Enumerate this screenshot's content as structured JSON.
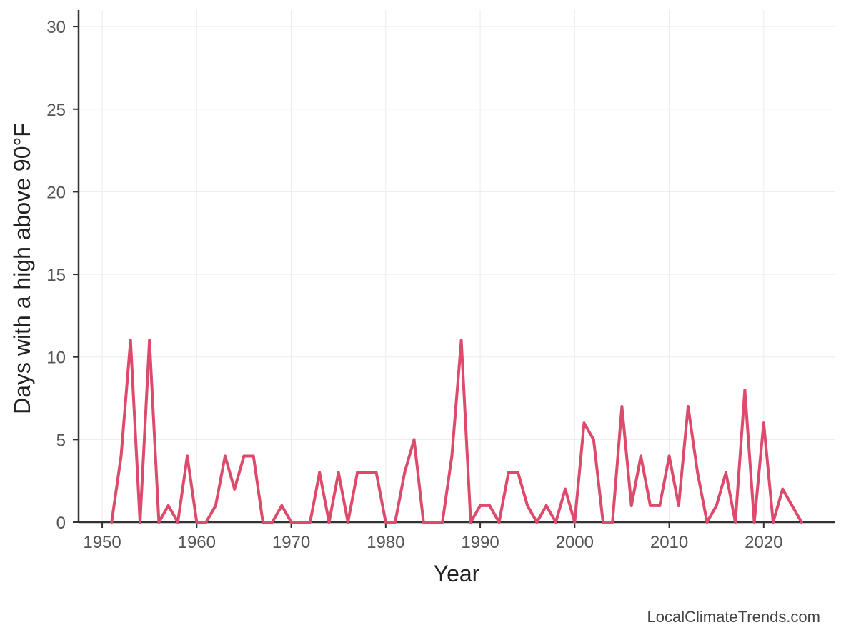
{
  "chart_data": {
    "type": "line",
    "xlabel": "Year",
    "ylabel": "Days with a high above 90°F",
    "xlim": [
      1947.5,
      2027.5
    ],
    "ylim": [
      0,
      31
    ],
    "xticks": [
      1950,
      1960,
      1970,
      1980,
      1990,
      2000,
      2010,
      2020
    ],
    "yticks": [
      0,
      5,
      10,
      15,
      20,
      25,
      30
    ],
    "grid": true,
    "line_color": "#dc4a6c",
    "series": [
      {
        "x": [
          1951,
          1952,
          1953,
          1954,
          1955,
          1956,
          1957,
          1958,
          1959,
          1960,
          1961,
          1962,
          1963,
          1964,
          1965,
          1966,
          1967,
          1968,
          1969,
          1970,
          1971,
          1972,
          1973,
          1974,
          1975,
          1976,
          1977,
          1978,
          1979,
          1980,
          1981,
          1982,
          1983,
          1984,
          1985,
          1986,
          1987,
          1988,
          1989,
          1990,
          1991,
          1992,
          1993,
          1994,
          1995,
          1996,
          1997,
          1998,
          1999,
          2000,
          2001,
          2002,
          2003,
          2004,
          2005,
          2006,
          2007,
          2008,
          2009,
          2010,
          2011,
          2012,
          2013,
          2014,
          2015,
          2016,
          2017,
          2018,
          2019,
          2020,
          2021,
          2022,
          2023,
          2024
        ],
        "values": [
          0,
          4,
          11,
          0,
          11,
          0,
          1,
          0,
          4,
          0,
          0,
          1,
          4,
          2,
          4,
          4,
          0,
          0,
          1,
          0,
          0,
          0,
          3,
          0,
          3,
          0,
          3,
          3,
          3,
          0,
          0,
          3,
          5,
          0,
          0,
          0,
          4,
          11,
          0,
          1,
          1,
          0,
          3,
          3,
          1,
          0,
          1,
          0,
          2,
          0,
          6,
          5,
          0,
          0,
          7,
          1,
          4,
          1,
          1,
          4,
          1,
          7,
          3,
          0,
          1,
          3,
          0,
          8,
          0,
          6,
          0,
          2,
          1,
          0
        ]
      }
    ]
  },
  "credit": "LocalClimateTrends.com"
}
